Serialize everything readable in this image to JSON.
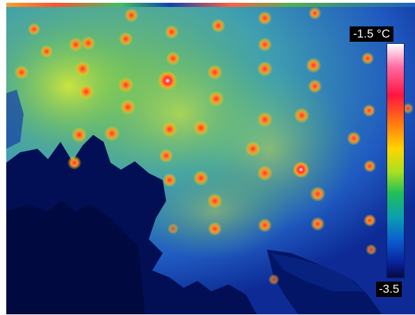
{
  "colorbar": {
    "max_label": "-1.5 °C",
    "min_label": "-3.5",
    "colors": [
      "#ffffff",
      "#ff1540",
      "#ff7a10",
      "#ffd500",
      "#1fbf5a",
      "#0b5ed0",
      "#050a40"
    ]
  }
}
